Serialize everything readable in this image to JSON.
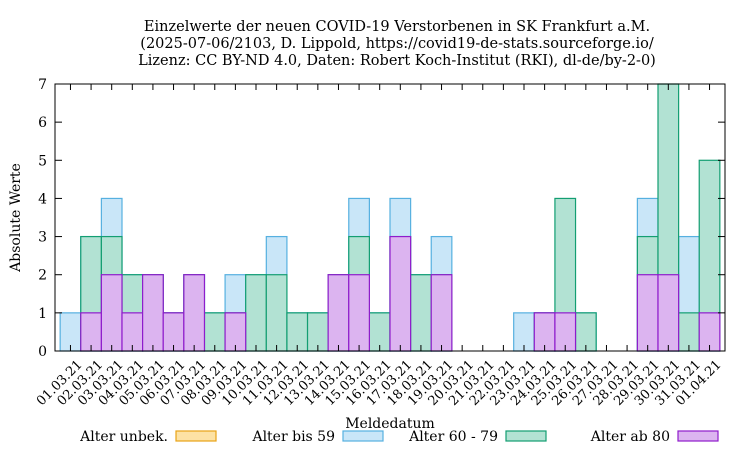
{
  "chart_data": {
    "type": "bar",
    "title": [
      "Einzelwerte der neuen COVID-19 Verstorbenen in SK Frankfurt a.M.",
      "(2025-07-06/2103, D. Lippold, https://covid19-de-stats.sourceforge.io/",
      "Lizenz: CC BY-ND 4.0, Daten: Robert Koch-Institut (RKI), dl-de/by-2-0)"
    ],
    "xlabel": "Meldedatum",
    "ylabel": "Absolute Werte",
    "ylim": [
      0,
      7
    ],
    "yticks": [
      0,
      1,
      2,
      3,
      4,
      5,
      6,
      7
    ],
    "grid": false,
    "legend_position": "bottom",
    "categories": [
      "01.03.21",
      "02.03.21",
      "03.03.21",
      "04.03.21",
      "05.03.21",
      "06.03.21",
      "07.03.21",
      "08.03.21",
      "09.03.21",
      "10.03.21",
      "11.03.21",
      "12.03.21",
      "13.03.21",
      "14.03.21",
      "15.03.21",
      "16.03.21",
      "17.03.21",
      "18.03.21",
      "19.03.21",
      "20.03.21",
      "21.03.21",
      "22.03.21",
      "23.03.21",
      "24.03.21",
      "25.03.21",
      "26.03.21",
      "27.03.21",
      "28.03.21",
      "29.03.21",
      "30.03.21",
      "31.03.21",
      "01.04.21"
    ],
    "series": [
      {
        "name": "Alter unbek.",
        "fill": "#fde2a4",
        "stroke": "#e8a317",
        "values": [
          0,
          0,
          0,
          0,
          0,
          0,
          0,
          0,
          0,
          0,
          0,
          0,
          0,
          0,
          0,
          0,
          0,
          0,
          0,
          0,
          0,
          0,
          0,
          0,
          0,
          0,
          0,
          0,
          0,
          0,
          0,
          0
        ]
      },
      {
        "name": "Alter bis 59",
        "fill": "#c9e6f8",
        "stroke": "#56b0e0",
        "values": [
          1,
          3,
          4,
          2,
          2,
          1,
          2,
          1,
          2,
          2,
          3,
          1,
          1,
          2,
          4,
          1,
          4,
          2,
          3,
          0,
          0,
          0,
          1,
          1,
          1,
          1,
          0,
          0,
          4,
          2,
          3,
          1
        ]
      },
      {
        "name": "Alter 60 - 79",
        "fill": "#b2e2d3",
        "stroke": "#139e72",
        "values": [
          0,
          3,
          3,
          2,
          2,
          1,
          2,
          1,
          1,
          2,
          2,
          1,
          1,
          2,
          3,
          1,
          3,
          2,
          2,
          0,
          0,
          0,
          0,
          1,
          4,
          1,
          0,
          0,
          3,
          7,
          1,
          5
        ]
      },
      {
        "name": "Alter ab 80",
        "fill": "#dcb4f0",
        "stroke": "#8f1ccc",
        "values": [
          0,
          1,
          2,
          1,
          2,
          1,
          2,
          0,
          1,
          0,
          0,
          0,
          0,
          2,
          2,
          0,
          3,
          0,
          2,
          0,
          0,
          0,
          0,
          1,
          1,
          0,
          0,
          0,
          2,
          2,
          0,
          1
        ]
      }
    ]
  }
}
